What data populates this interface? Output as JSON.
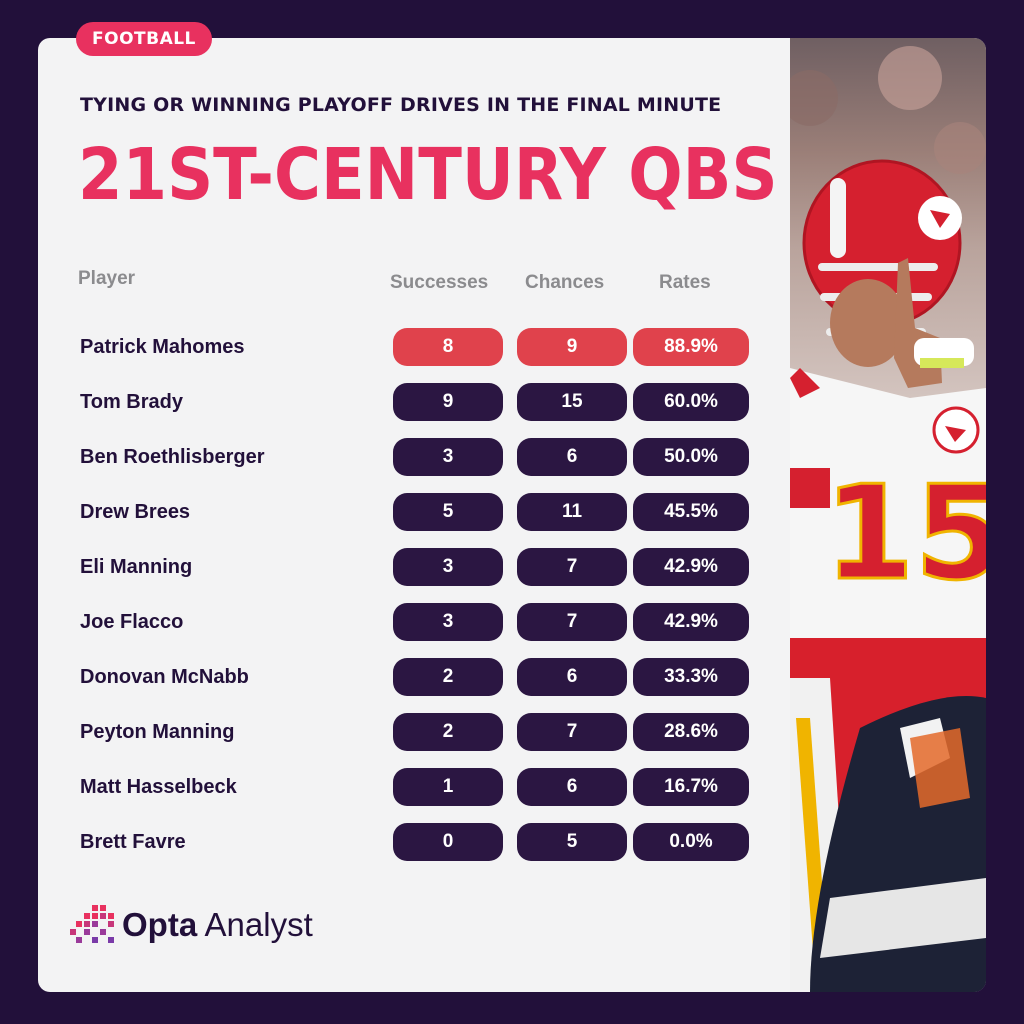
{
  "tag": "FOOTBALL",
  "subtitle": "TYING OR WINNING PLAYOFF DRIVES IN THE FINAL MINUTE",
  "title": "21ST-CENTURY QBS",
  "columns": {
    "player": "Player",
    "successes": "Successes",
    "chances": "Chances",
    "rates": "Rates"
  },
  "brand": {
    "strong": "Opta",
    "light": " Analyst"
  },
  "colors": {
    "accent": "#e8315f",
    "highlight_pill": "#e0424c",
    "pill": "#2b1642",
    "background": "#22103a"
  },
  "chart_data": {
    "type": "table",
    "title": "21ST-CENTURY QBS",
    "subtitle": "TYING OR WINNING PLAYOFF DRIVES IN THE FINAL MINUTE",
    "columns": [
      "Player",
      "Successes",
      "Chances",
      "Rates"
    ],
    "rows": [
      {
        "player": "Patrick Mahomes",
        "successes": "8",
        "chances": "9",
        "rate": "88.9%",
        "highlight": true
      },
      {
        "player": "Tom Brady",
        "successes": "9",
        "chances": "15",
        "rate": "60.0%"
      },
      {
        "player": "Ben Roethlisberger",
        "successes": "3",
        "chances": "6",
        "rate": "50.0%"
      },
      {
        "player": "Drew Brees",
        "successes": "5",
        "chances": "11",
        "rate": "45.5%"
      },
      {
        "player": "Eli Manning",
        "successes": "3",
        "chances": "7",
        "rate": "42.9%"
      },
      {
        "player": "Joe Flacco",
        "successes": "3",
        "chances": "7",
        "rate": "42.9%"
      },
      {
        "player": "Donovan McNabb",
        "successes": "2",
        "chances": "6",
        "rate": "33.3%"
      },
      {
        "player": "Peyton Manning",
        "successes": "2",
        "chances": "7",
        "rate": "28.6%"
      },
      {
        "player": "Matt Hasselbeck",
        "successes": "1",
        "chances": "6",
        "rate": "16.7%"
      },
      {
        "player": "Brett Favre",
        "successes": "0",
        "chances": "5",
        "rate": "0.0%"
      }
    ]
  }
}
